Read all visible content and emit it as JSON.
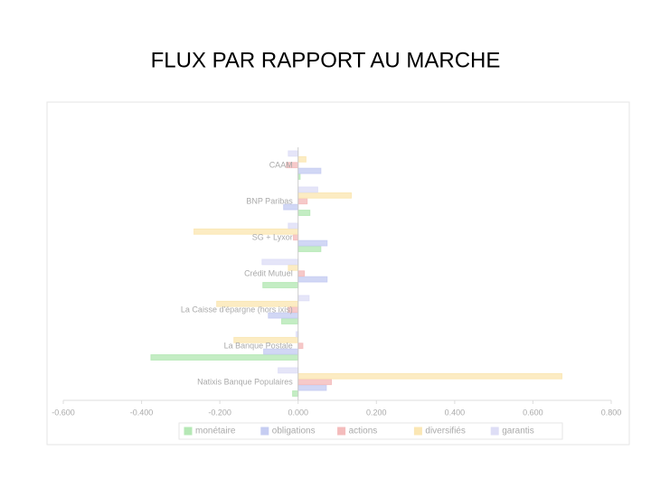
{
  "chart_data": {
    "type": "hbar",
    "title": "FLUX PAR RAPPORT AU MARCHE",
    "categories": [
      "CAAM",
      "BNP Paribas",
      "SG + Lyxor",
      "Crédit Mutuel",
      "La Caisse d'épargne (hors ixis)",
      "La Banque Postale",
      "Natixis Banque Populaires"
    ],
    "series": [
      {
        "name": "monétaire",
        "color": "#b5e8b5",
        "values": [
          0.005,
          0.03,
          0.058,
          -0.09,
          -0.042,
          -0.376,
          -0.014
        ]
      },
      {
        "name": "obligations",
        "color": "#c6cdf2",
        "values": [
          0.058,
          -0.037,
          0.074,
          0.074,
          -0.076,
          -0.088,
          0.072
        ]
      },
      {
        "name": "actions",
        "color": "#f4bcbc",
        "values": [
          -0.03,
          0.023,
          -0.012,
          0.016,
          -0.025,
          0.012,
          0.085
        ]
      },
      {
        "name": "diversifiés",
        "color": "#fbe7b4",
        "values": [
          0.02,
          0.136,
          -0.266,
          -0.025,
          -0.208,
          -0.164,
          0.674
        ]
      },
      {
        "name": "garantis",
        "color": "#dedef6",
        "values": [
          -0.025,
          0.05,
          -0.025,
          -0.092,
          0.028,
          -0.005,
          -0.051
        ]
      }
    ],
    "xlim": [
      -0.6,
      0.8
    ],
    "xticks": [
      {
        "value": -0.6,
        "label": "-0.600"
      },
      {
        "value": -0.4,
        "label": "-0.400"
      },
      {
        "value": -0.2,
        "label": "-0.200"
      },
      {
        "value": 0,
        "label": "0.000"
      },
      {
        "value": 0.2,
        "label": "0.200"
      },
      {
        "value": 0.4,
        "label": "0.400"
      },
      {
        "value": 0.6,
        "label": "0.600"
      },
      {
        "value": 0.8,
        "label": "0.800"
      }
    ]
  }
}
